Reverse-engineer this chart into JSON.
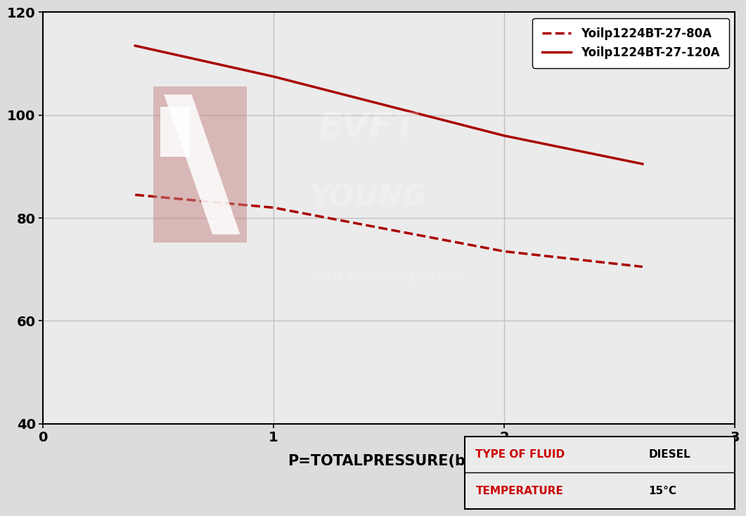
{
  "bg_color": "#dcdcdc",
  "plot_bg_color": "#ebebeb",
  "line_color": "#aa0000",
  "grid_color": "#c0c0c0",
  "axis_color": "#000000",
  "tick_color": "#cc0000",
  "xlabel": "P=TOTALPRESSURE(bar)",
  "xlabel_color": "#000000",
  "xlim": [
    0,
    3
  ],
  "ylim": [
    40,
    120
  ],
  "xticks": [
    0,
    1,
    2,
    3
  ],
  "yticks": [
    40,
    60,
    80,
    100,
    120
  ],
  "series_120A": {
    "x": [
      0.4,
      1.0,
      2.0,
      2.6
    ],
    "y": [
      113.5,
      107.5,
      96.0,
      90.5
    ],
    "label": "Yoilp1224BT-27-120A",
    "linestyle": "solid",
    "linewidth": 2.5
  },
  "series_80A": {
    "x": [
      0.4,
      1.0,
      2.0,
      2.6
    ],
    "y": [
      84.5,
      82.0,
      73.5,
      70.5
    ],
    "label": "Yoilp1224BT-27-80A",
    "linestyle": "dashed",
    "linewidth": 2.5
  },
  "info_box": {
    "fluid_label": "TYPE OF FLUID",
    "fluid_value": "DIESEL",
    "temp_label": "TEMPERATURE",
    "temp_value": "15°C",
    "label_color": "#cc0000",
    "value_color": "#000000",
    "border_color": "#000000",
    "bg_color": "#ebebeb"
  },
  "legend_fontsize": 12,
  "watermark_url": "www.everyoung-cn.com",
  "tick_fontsize": 14,
  "label_fontsize": 15
}
